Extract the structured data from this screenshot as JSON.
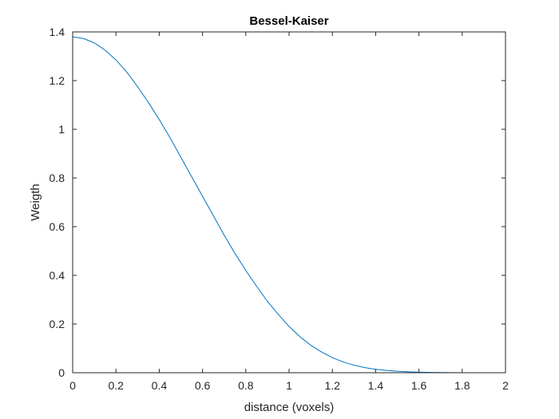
{
  "chart_data": {
    "type": "line",
    "title": "Bessel-Kaiser",
    "xlabel": "distance (voxels)",
    "ylabel": "Weigth",
    "xlim": [
      0,
      2
    ],
    "ylim": [
      0,
      1.4
    ],
    "x_ticks": [
      0,
      0.2,
      0.4,
      0.6,
      0.8,
      1,
      1.2,
      1.4,
      1.6,
      1.8,
      2
    ],
    "x_tick_labels": [
      "0",
      "0.2",
      "0.4",
      "0.6",
      "0.8",
      "1",
      "1.2",
      "1.4",
      "1.6",
      "1.8",
      "2"
    ],
    "y_ticks": [
      0,
      0.2,
      0.4,
      0.6,
      0.8,
      1,
      1.2,
      1.4
    ],
    "y_tick_labels": [
      "0",
      "0.2",
      "0.4",
      "0.6",
      "0.8",
      "1",
      "1.2",
      "1.4"
    ],
    "grid": false,
    "box": true,
    "series": [
      {
        "color": "#0072BD",
        "x": [
          0,
          0.05,
          0.1,
          0.15,
          0.2,
          0.25,
          0.3,
          0.35,
          0.4,
          0.45,
          0.5,
          0.55,
          0.6,
          0.65,
          0.7,
          0.75,
          0.8,
          0.85,
          0.9,
          0.95,
          1,
          1.05,
          1.1,
          1.15,
          1.2,
          1.25,
          1.3,
          1.35,
          1.4,
          1.45,
          1.5,
          1.55,
          1.6,
          1.65,
          1.7,
          1.75,
          1.8,
          1.85,
          1.9,
          1.95,
          2
        ],
        "y": [
          1.38,
          1.373,
          1.355,
          1.325,
          1.285,
          1.235,
          1.175,
          1.11,
          1.04,
          0.965,
          0.885,
          0.805,
          0.725,
          0.645,
          0.565,
          0.49,
          0.42,
          0.355,
          0.293,
          0.24,
          0.19,
          0.148,
          0.113,
          0.085,
          0.062,
          0.044,
          0.031,
          0.021,
          0.014,
          0.0095,
          0.006,
          0.0036,
          0.0021,
          0.0012,
          0.0007,
          0.0004,
          0.0002,
          0.0001,
          5e-05,
          2e-05,
          0
        ]
      }
    ]
  }
}
